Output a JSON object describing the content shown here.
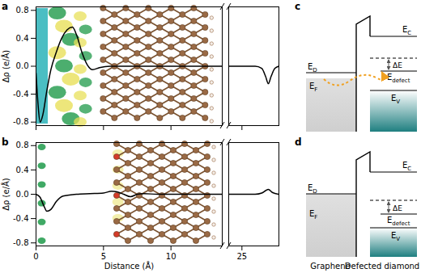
{
  "chart_data": [
    {
      "type": "line",
      "title": "a",
      "y_label": "Δρ (e/Å)",
      "color": "#000000",
      "tick_labels": "y",
      "x": [
        0,
        0.15,
        0.3,
        0.5,
        0.8,
        1.1,
        1.5,
        1.9,
        2.3,
        2.7,
        3.0,
        3.4,
        3.8,
        4.2,
        4.7,
        5.5,
        7,
        9,
        11,
        13.8,
        24,
        25,
        26,
        26.5,
        26.8,
        27.0,
        27.2,
        27.5,
        27.8
      ],
      "values": [
        -0.1,
        -0.55,
        -0.8,
        -0.7,
        -0.35,
        -0.05,
        0.2,
        0.4,
        0.52,
        0.56,
        0.45,
        0.2,
        0.02,
        -0.05,
        -0.02,
        0.0,
        0.0,
        0.0,
        0.0,
        0.0,
        0.0,
        0.0,
        0.0,
        -0.03,
        -0.15,
        -0.25,
        -0.15,
        -0.03,
        0.0
      ],
      "xlim": [
        0,
        27.8
      ],
      "x_break": [
        13.8,
        24
      ],
      "xticks": [
        0,
        5,
        10,
        25
      ],
      "ylim": [
        -0.85,
        0.85
      ],
      "yticks": [
        -0.8,
        -0.4,
        {
          "value": 0,
          "label": "0.0"
        },
        0.4,
        0.8
      ]
    },
    {
      "type": "line",
      "title": "b",
      "x_label": "Distance (Å)",
      "y_label": "Δρ (e/Å)",
      "color": "#000000",
      "tick_labels": true,
      "x": [
        0,
        0.3,
        0.6,
        0.8,
        1.1,
        1.5,
        2,
        3,
        4,
        5,
        5.6,
        6.0,
        6.5,
        7.0,
        7.5,
        8,
        9,
        11,
        13.8,
        24,
        25,
        26,
        26.5,
        26.8,
        27.0,
        27.3,
        27.8
      ],
      "values": [
        0,
        -0.05,
        -0.2,
        -0.28,
        -0.25,
        -0.12,
        -0.03,
        0.0,
        0.01,
        0.02,
        0.05,
        0.04,
        0.0,
        -0.04,
        0.0,
        0.01,
        0.0,
        0.0,
        0.0,
        0.0,
        0.0,
        0.0,
        0.02,
        0.06,
        0.08,
        0.03,
        0.0
      ],
      "xlim": [
        0,
        27.8
      ],
      "x_break": [
        13.8,
        24
      ],
      "xticks": [
        0,
        5,
        10,
        25
      ],
      "ylim": [
        -0.85,
        0.85
      ],
      "yticks": [
        -0.8,
        -0.4,
        {
          "value": 0,
          "label": "0.0"
        },
        0.4,
        0.8
      ]
    }
  ],
  "diagrams": [
    {
      "title": "c",
      "charge_transfer": true,
      "levels": {
        "conduction": {
          "symbol": "E",
          "sub": "C"
        },
        "dirac": {
          "symbol": "E",
          "sub": "D"
        },
        "fermi": {
          "symbol": "E",
          "sub": "F"
        },
        "defect": {
          "symbol": "E",
          "sub": "defect"
        },
        "valence": {
          "symbol": "E",
          "sub": "V"
        },
        "gap": "ΔE"
      }
    },
    {
      "title": "d",
      "charge_transfer": false,
      "levels": {
        "conduction": {
          "symbol": "E",
          "sub": "C"
        },
        "dirac": {
          "symbol": "E",
          "sub": "D"
        },
        "fermi": {
          "symbol": "E",
          "sub": "F"
        },
        "defect": {
          "symbol": "E",
          "sub": "defect"
        },
        "valence": {
          "symbol": "E",
          "sub": "V"
        },
        "gap": "ΔE"
      },
      "columns": [
        "Graphene",
        "Defected diamond"
      ]
    }
  ]
}
